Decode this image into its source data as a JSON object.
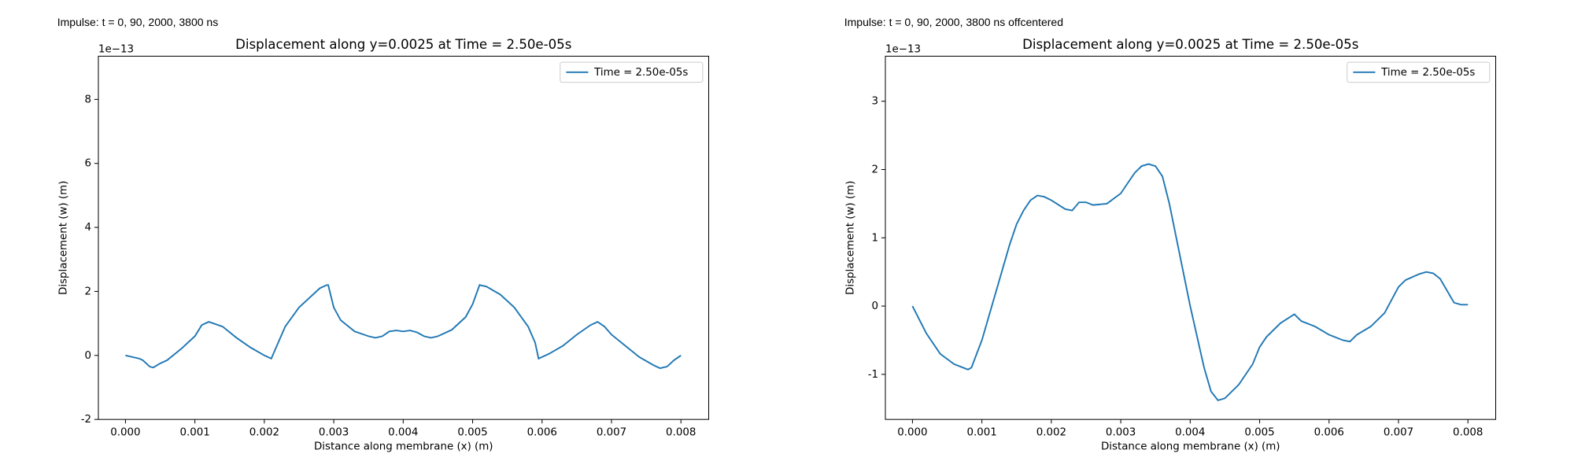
{
  "chart_data": [
    {
      "type": "line",
      "annotation": "Impulse: t = 0, 90, 2000, 3800 ns",
      "title": "Displacement along y=0.0025 at Time = 2.50e-05s",
      "x_label": "Distance along membrane (x) (m)",
      "y_label": "Displacement (w) (m)",
      "y_offset_label": "1e−13",
      "x": [
        0,
        0.0002,
        0.00025,
        0.00035,
        0.0004,
        0.0005,
        0.0006,
        0.0008,
        0.001,
        0.0011,
        0.0012,
        0.0014,
        0.0016,
        0.0018,
        0.002,
        0.0021,
        0.0023,
        0.0025,
        0.0027,
        0.0028,
        0.0029,
        0.00292,
        0.003,
        0.0031,
        0.0033,
        0.0035,
        0.0036,
        0.0037,
        0.0038,
        0.0039,
        0.004,
        0.0041,
        0.0042,
        0.0043,
        0.0044,
        0.0045,
        0.0047,
        0.0049,
        0.005,
        0.0051,
        0.0052,
        0.0054,
        0.0056,
        0.0058,
        0.0059,
        0.00595,
        0.0061,
        0.0063,
        0.0065,
        0.0067,
        0.0068,
        0.0069,
        0.007,
        0.0072,
        0.0074,
        0.0076,
        0.0077,
        0.0078,
        0.0079,
        0.008
      ],
      "series": [
        {
          "name": "Time = 2.50e-05s",
          "color": "#1f77b4",
          "values": [
            0,
            -0.1,
            -0.15,
            -0.35,
            -0.38,
            -0.25,
            -0.15,
            0.2,
            0.6,
            0.95,
            1.05,
            0.9,
            0.55,
            0.25,
            0,
            -0.1,
            0.9,
            1.5,
            1.9,
            2.1,
            2.2,
            2.2,
            1.5,
            1.1,
            0.75,
            0.6,
            0.55,
            0.6,
            0.75,
            0.78,
            0.75,
            0.78,
            0.72,
            0.6,
            0.55,
            0.6,
            0.8,
            1.2,
            1.6,
            2.2,
            2.15,
            1.9,
            1.5,
            0.9,
            0.4,
            -0.1,
            0.05,
            0.3,
            0.65,
            0.95,
            1.05,
            0.9,
            0.65,
            0.3,
            -0.05,
            -0.3,
            -0.4,
            -0.35,
            -0.15,
            0
          ]
        }
      ],
      "xlim": [
        -0.00039,
        0.0084
      ],
      "ylim": [
        -2,
        9.35
      ],
      "xticks": [
        {
          "value": 0,
          "label": "0.000"
        },
        {
          "value": 0.001,
          "label": "0.001"
        },
        {
          "value": 0.002,
          "label": "0.002"
        },
        {
          "value": 0.003,
          "label": "0.003"
        },
        {
          "value": 0.004,
          "label": "0.004"
        },
        {
          "value": 0.005,
          "label": "0.005"
        },
        {
          "value": 0.006,
          "label": "0.006"
        },
        {
          "value": 0.007,
          "label": "0.007"
        },
        {
          "value": 0.008,
          "label": "0.008"
        }
      ],
      "yticks": [
        -2,
        0,
        2,
        4,
        6,
        8
      ],
      "grid": false,
      "legend": "upper right"
    },
    {
      "type": "line",
      "annotation": "Impulse: t = 0, 90, 2000, 3800 ns offcentered",
      "title": "Displacement along y=0.0025 at Time = 2.50e-05s",
      "x_label": "Distance along membrane (x) (m)",
      "y_label": "Displacement (w) (m)",
      "y_offset_label": "1e−13",
      "x": [
        0,
        0.0002,
        0.0004,
        0.0006,
        0.0008,
        0.00085,
        0.001,
        0.0012,
        0.0014,
        0.0015,
        0.0016,
        0.0017,
        0.0018,
        0.0019,
        0.002,
        0.0022,
        0.0023,
        0.0024,
        0.0025,
        0.0026,
        0.0028,
        0.003,
        0.0032,
        0.0033,
        0.0034,
        0.0035,
        0.0036,
        0.0037,
        0.0038,
        0.004,
        0.0042,
        0.0043,
        0.0044,
        0.0045,
        0.0047,
        0.0049,
        0.005,
        0.0051,
        0.0053,
        0.0055,
        0.0056,
        0.0058,
        0.006,
        0.0062,
        0.0063,
        0.0064,
        0.0066,
        0.0068,
        0.007,
        0.0071,
        0.0073,
        0.0074,
        0.0075,
        0.0076,
        0.0078,
        0.0079,
        0.008
      ],
      "series": [
        {
          "name": "Time = 2.50e-05s",
          "color": "#1f77b4",
          "values": [
            0,
            -0.4,
            -0.7,
            -0.85,
            -0.93,
            -0.9,
            -0.5,
            0.2,
            0.9,
            1.2,
            1.4,
            1.55,
            1.62,
            1.6,
            1.55,
            1.42,
            1.4,
            1.52,
            1.52,
            1.48,
            1.5,
            1.65,
            1.95,
            2.05,
            2.08,
            2.05,
            1.9,
            1.5,
            1.0,
            0,
            -0.9,
            -1.25,
            -1.38,
            -1.35,
            -1.15,
            -0.85,
            -0.6,
            -0.45,
            -0.25,
            -0.12,
            -0.22,
            -0.3,
            -0.42,
            -0.5,
            -0.52,
            -0.42,
            -0.3,
            -0.1,
            0.28,
            0.38,
            0.47,
            0.5,
            0.48,
            0.4,
            0.05,
            0.02,
            0.02
          ]
        }
      ],
      "xlim": [
        -0.00039,
        0.0084
      ],
      "ylim": [
        -1.66,
        3.66
      ],
      "xticks": [
        {
          "value": 0,
          "label": "0.000"
        },
        {
          "value": 0.001,
          "label": "0.001"
        },
        {
          "value": 0.002,
          "label": "0.002"
        },
        {
          "value": 0.003,
          "label": "0.003"
        },
        {
          "value": 0.004,
          "label": "0.004"
        },
        {
          "value": 0.005,
          "label": "0.005"
        },
        {
          "value": 0.006,
          "label": "0.006"
        },
        {
          "value": 0.007,
          "label": "0.007"
        },
        {
          "value": 0.008,
          "label": "0.008"
        }
      ],
      "yticks": [
        -1,
        0,
        1,
        2,
        3
      ],
      "grid": false,
      "legend": "upper right"
    }
  ]
}
